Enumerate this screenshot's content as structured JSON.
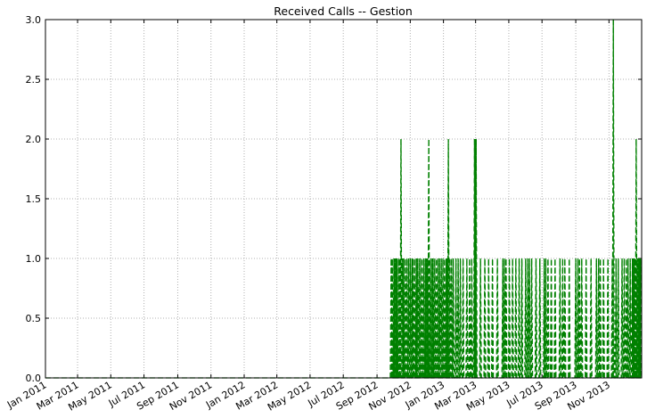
{
  "chart_data": {
    "type": "line",
    "title": "Received Calls -- Gestion",
    "xlabel": "",
    "ylabel": "",
    "xlim": [
      "2011-01-01",
      "2013-12-31"
    ],
    "ylim": [
      0,
      3
    ],
    "grid": true,
    "line_style": "dashed",
    "x_tick_labels": [
      "Jan 2011",
      "Mar 2011",
      "May 2011",
      "Jul 2011",
      "Sep 2011",
      "Nov 2011",
      "Jan 2012",
      "Mar 2012",
      "May 2012",
      "Jul 2012",
      "Sep 2012",
      "Nov 2012",
      "Jan 2013",
      "Mar 2013",
      "May 2013",
      "Jul 2013",
      "Sep 2013",
      "Nov 2013"
    ],
    "x_tick_dates": [
      "2011-01-01",
      "2011-03-01",
      "2011-05-01",
      "2011-07-01",
      "2011-09-01",
      "2011-11-01",
      "2012-01-01",
      "2012-03-01",
      "2012-05-01",
      "2012-07-01",
      "2012-09-01",
      "2012-11-01",
      "2013-01-01",
      "2013-03-01",
      "2013-05-01",
      "2013-07-01",
      "2013-09-01",
      "2013-11-01"
    ],
    "y_tick_labels": [
      "0.0",
      "0.5",
      "1.0",
      "1.5",
      "2.0",
      "2.5",
      "3.0"
    ],
    "y_ticks": [
      0,
      0.5,
      1.0,
      1.5,
      2.0,
      2.5,
      3.0
    ],
    "series": [
      {
        "color": "#008000",
        "values": [
          {
            "x": "2012-09-27",
            "y": 1
          },
          {
            "x": "2012-09-29",
            "y": 1
          },
          {
            "x": "2012-10-02",
            "y": 1
          },
          {
            "x": "2012-10-04",
            "y": 1
          },
          {
            "x": "2012-10-06",
            "y": 1
          },
          {
            "x": "2012-10-08",
            "y": 1
          },
          {
            "x": "2012-10-11",
            "y": 1
          },
          {
            "x": "2012-10-13",
            "y": 1
          },
          {
            "x": "2012-10-15",
            "y": 2
          },
          {
            "x": "2012-10-18",
            "y": 1
          },
          {
            "x": "2012-10-20",
            "y": 1
          },
          {
            "x": "2012-10-23",
            "y": 1
          },
          {
            "x": "2012-10-26",
            "y": 1
          },
          {
            "x": "2012-10-29",
            "y": 1
          },
          {
            "x": "2012-11-01",
            "y": 1
          },
          {
            "x": "2012-11-04",
            "y": 1
          },
          {
            "x": "2012-11-06",
            "y": 1
          },
          {
            "x": "2012-11-09",
            "y": 1
          },
          {
            "x": "2012-11-12",
            "y": 1
          },
          {
            "x": "2012-11-14",
            "y": 1
          },
          {
            "x": "2012-11-17",
            "y": 1
          },
          {
            "x": "2012-11-20",
            "y": 1
          },
          {
            "x": "2012-11-23",
            "y": 1
          },
          {
            "x": "2012-11-26",
            "y": 1
          },
          {
            "x": "2012-11-29",
            "y": 1
          },
          {
            "x": "2012-12-01",
            "y": 1
          },
          {
            "x": "2012-12-03",
            "y": 1
          },
          {
            "x": "2012-12-05",
            "y": 2
          },
          {
            "x": "2012-12-08",
            "y": 1
          },
          {
            "x": "2012-12-11",
            "y": 1
          },
          {
            "x": "2012-12-13",
            "y": 1
          },
          {
            "x": "2012-12-16",
            "y": 1
          },
          {
            "x": "2012-12-19",
            "y": 1
          },
          {
            "x": "2012-12-22",
            "y": 1
          },
          {
            "x": "2012-12-25",
            "y": 1
          },
          {
            "x": "2012-12-28",
            "y": 1
          },
          {
            "x": "2012-12-31",
            "y": 1
          },
          {
            "x": "2013-01-03",
            "y": 1
          },
          {
            "x": "2013-01-06",
            "y": 1
          },
          {
            "x": "2013-01-08",
            "y": 1
          },
          {
            "x": "2013-01-10",
            "y": 2
          },
          {
            "x": "2013-01-13",
            "y": 1
          },
          {
            "x": "2013-01-16",
            "y": 1
          },
          {
            "x": "2013-01-19",
            "y": 1
          },
          {
            "x": "2013-01-24",
            "y": 1
          },
          {
            "x": "2013-01-28",
            "y": 1
          },
          {
            "x": "2013-02-01",
            "y": 1
          },
          {
            "x": "2013-02-06",
            "y": 1
          },
          {
            "x": "2013-02-13",
            "y": 1
          },
          {
            "x": "2013-02-18",
            "y": 1
          },
          {
            "x": "2013-02-22",
            "y": 1
          },
          {
            "x": "2013-02-27",
            "y": 2
          },
          {
            "x": "2013-02-28",
            "y": 2
          },
          {
            "x": "2013-03-01",
            "y": 2
          },
          {
            "x": "2013-03-02",
            "y": 2
          },
          {
            "x": "2013-03-10",
            "y": 1
          },
          {
            "x": "2013-03-18",
            "y": 1
          },
          {
            "x": "2013-03-25",
            "y": 1
          },
          {
            "x": "2013-04-01",
            "y": 1
          },
          {
            "x": "2013-04-10",
            "y": 1
          },
          {
            "x": "2013-04-20",
            "y": 1
          },
          {
            "x": "2013-04-23",
            "y": 1
          },
          {
            "x": "2013-04-26",
            "y": 1
          },
          {
            "x": "2013-05-02",
            "y": 1
          },
          {
            "x": "2013-05-08",
            "y": 1
          },
          {
            "x": "2013-05-14",
            "y": 1
          },
          {
            "x": "2013-05-20",
            "y": 1
          },
          {
            "x": "2013-05-25",
            "y": 1
          },
          {
            "x": "2013-06-01",
            "y": 1
          },
          {
            "x": "2013-06-05",
            "y": 1
          },
          {
            "x": "2013-06-08",
            "y": 1
          },
          {
            "x": "2013-06-12",
            "y": 1
          },
          {
            "x": "2013-06-20",
            "y": 1
          },
          {
            "x": "2013-06-27",
            "y": 1
          },
          {
            "x": "2013-07-05",
            "y": 1
          },
          {
            "x": "2013-07-08",
            "y": 1
          },
          {
            "x": "2013-07-12",
            "y": 1
          },
          {
            "x": "2013-07-18",
            "y": 1
          },
          {
            "x": "2013-07-25",
            "y": 1
          },
          {
            "x": "2013-08-03",
            "y": 1
          },
          {
            "x": "2013-08-08",
            "y": 1
          },
          {
            "x": "2013-08-12",
            "y": 1
          },
          {
            "x": "2013-08-20",
            "y": 1
          },
          {
            "x": "2013-09-01",
            "y": 1
          },
          {
            "x": "2013-09-05",
            "y": 1
          },
          {
            "x": "2013-09-08",
            "y": 1
          },
          {
            "x": "2013-09-12",
            "y": 1
          },
          {
            "x": "2013-09-20",
            "y": 1
          },
          {
            "x": "2013-09-29",
            "y": 1
          },
          {
            "x": "2013-10-09",
            "y": 1
          },
          {
            "x": "2013-10-13",
            "y": 1
          },
          {
            "x": "2013-10-16",
            "y": 1
          },
          {
            "x": "2013-10-22",
            "y": 1
          },
          {
            "x": "2013-10-30",
            "y": 1
          },
          {
            "x": "2013-11-07",
            "y": 1
          },
          {
            "x": "2013-11-09",
            "y": 3
          },
          {
            "x": "2013-11-14",
            "y": 1
          },
          {
            "x": "2013-11-18",
            "y": 1
          },
          {
            "x": "2013-11-25",
            "y": 1
          },
          {
            "x": "2013-11-29",
            "y": 1
          },
          {
            "x": "2013-12-03",
            "y": 1
          },
          {
            "x": "2013-12-06",
            "y": 1
          },
          {
            "x": "2013-12-10",
            "y": 1
          },
          {
            "x": "2013-12-14",
            "y": 1
          },
          {
            "x": "2013-12-16",
            "y": 1
          },
          {
            "x": "2013-12-18",
            "y": 1
          },
          {
            "x": "2013-12-20",
            "y": 1
          },
          {
            "x": "2013-12-21",
            "y": 2
          },
          {
            "x": "2013-12-23",
            "y": 1
          },
          {
            "x": "2013-12-25",
            "y": 1
          },
          {
            "x": "2013-12-27",
            "y": 1
          },
          {
            "x": "2013-12-29",
            "y": 1
          }
        ]
      }
    ]
  }
}
